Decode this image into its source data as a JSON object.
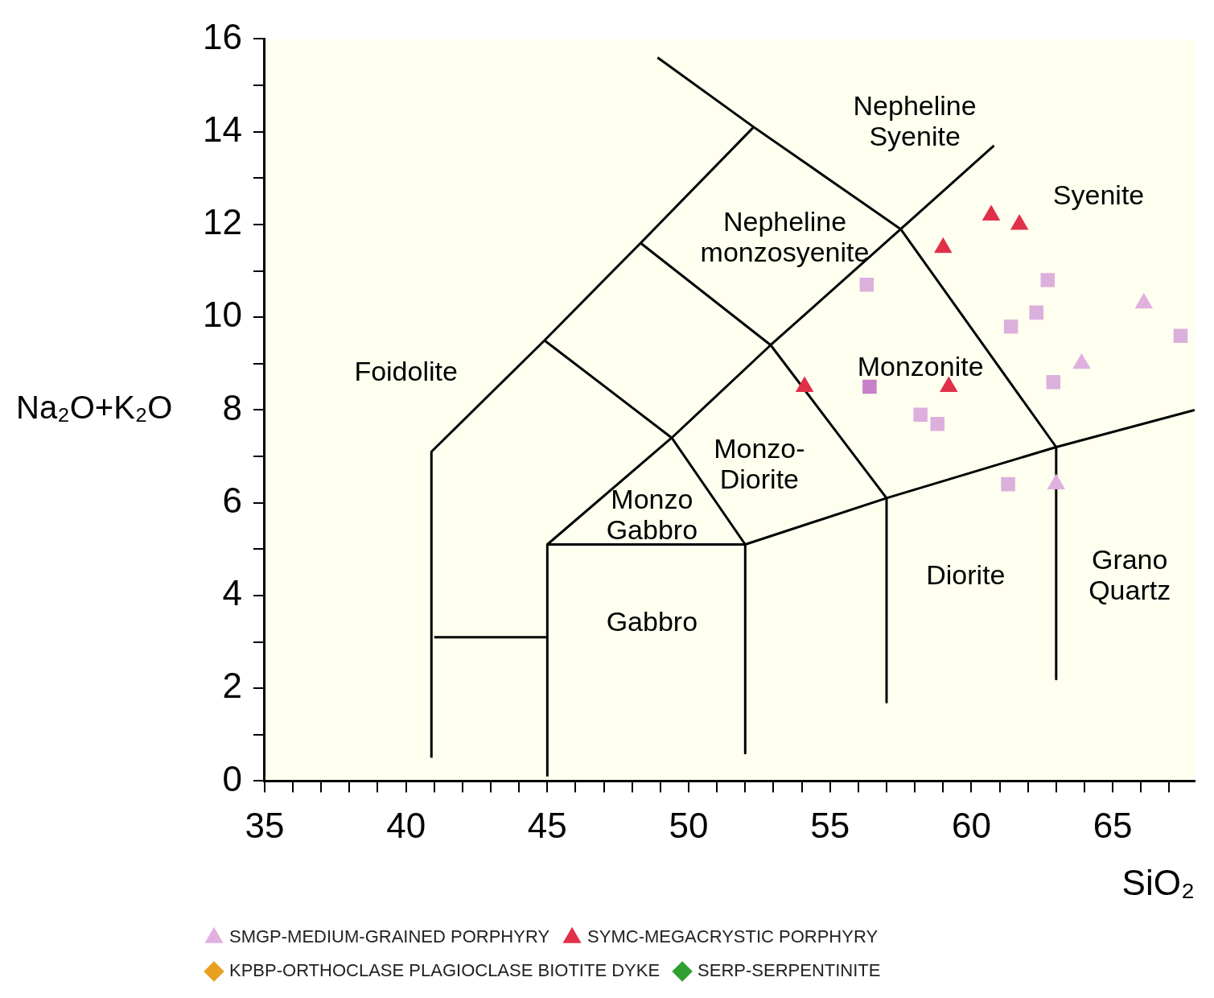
{
  "chart_data": {
    "type": "scatter",
    "xlabel": "SiO₂",
    "ylabel": "Na₂O+K₂O",
    "xlim": [
      35,
      67.9
    ],
    "ylim": [
      0,
      16
    ],
    "xticks": [
      35,
      {
        "value": 36,
        "label": null
      },
      {
        "value": 37,
        "label": null
      },
      {
        "value": 38,
        "label": null
      },
      {
        "value": 39,
        "label": null
      },
      40,
      {
        "value": 41,
        "label": null
      },
      {
        "value": 42,
        "label": null
      },
      {
        "value": 43,
        "label": null
      },
      {
        "value": 44,
        "label": null
      },
      45,
      {
        "value": 46,
        "label": null
      },
      {
        "value": 47,
        "label": null
      },
      {
        "value": 48,
        "label": null
      },
      {
        "value": 49,
        "label": null
      },
      50,
      {
        "value": 51,
        "label": null
      },
      {
        "value": 52,
        "label": null
      },
      {
        "value": 53,
        "label": null
      },
      {
        "value": 54,
        "label": null
      },
      55,
      {
        "value": 56,
        "label": null
      },
      {
        "value": 57,
        "label": null
      },
      {
        "value": 58,
        "label": null
      },
      {
        "value": 59,
        "label": null
      },
      60,
      {
        "value": 61,
        "label": null
      },
      {
        "value": 62,
        "label": null
      },
      {
        "value": 63,
        "label": null
      },
      {
        "value": 64,
        "label": null
      },
      65,
      {
        "value": 66,
        "label": null
      },
      {
        "value": 67,
        "label": null
      }
    ],
    "yticks": [
      0,
      {
        "value": 1,
        "label": null
      },
      2,
      {
        "value": 3,
        "label": null
      },
      4,
      {
        "value": 5,
        "label": null
      },
      6,
      {
        "value": 7,
        "label": null
      },
      8,
      {
        "value": 9,
        "label": null
      },
      10,
      {
        "value": 11,
        "label": null
      },
      12,
      {
        "value": 13,
        "label": null
      },
      14,
      {
        "value": 15,
        "label": null
      },
      16
    ],
    "legend": "bottom left",
    "series": [
      {
        "name": "SMGP-MEDIUM-GRAINED PORPHYRY",
        "marker": "triangle",
        "color": "#e0b0e0",
        "x": [
          66.1,
          63.9,
          63.0
        ],
        "values": [
          10.3,
          9.0,
          6.4
        ]
      },
      {
        "name": "SYMC-MEGACRYSTIC PORPHYRY",
        "marker": "triangle",
        "color": "#e0304a",
        "x": [
          60.7,
          61.7,
          59.0,
          54.1,
          59.2
        ],
        "values": [
          12.2,
          12.0,
          11.5,
          8.5,
          8.5
        ]
      },
      {
        "name": "KPBP-ORTHOCLASE PLAGIOCLASE BIOTITE DYKE",
        "marker": "diamond",
        "color": "#e8a020"
      },
      {
        "name": "SERP-SERPENTINITE",
        "marker": "diamond",
        "color": "#30a030"
      },
      {
        "marker": "square",
        "color": "#dcb0dc",
        "x": [
          56.3,
          62.7,
          62.3,
          61.4,
          67.4,
          62.9,
          58.2,
          58.8,
          61.3
        ],
        "values": [
          10.7,
          10.8,
          10.1,
          9.8,
          9.6,
          8.6,
          7.9,
          7.7,
          6.4
        ]
      },
      {
        "marker": "square",
        "color": "#c880c8",
        "x": [
          56.4
        ],
        "values": [
          8.5
        ]
      },
      {
        "type": "line",
        "marker": "none",
        "color": "#000000",
        "x": [
          40.9,
          40.9,
          44.9,
          48.3,
          52.3
        ],
        "values": [
          0.5,
          7.1,
          9.5,
          11.6,
          14.1
        ]
      },
      {
        "type": "line",
        "marker": "none",
        "color": "#000000",
        "x": [
          48.9,
          52.3,
          57.5,
          63.0,
          63.0
        ],
        "values": [
          15.6,
          14.1,
          11.9,
          7.2,
          2.2
        ]
      },
      {
        "type": "line",
        "marker": "none",
        "color": "#000000",
        "x": [
          45.0,
          49.4,
          52.9,
          57.5,
          60.8
        ],
        "values": [
          5.1,
          7.4,
          9.4,
          11.9,
          13.7
        ]
      },
      {
        "type": "line",
        "marker": "none",
        "color": "#000000",
        "x": [
          48.3,
          52.9,
          57.0,
          57.0
        ],
        "values": [
          11.6,
          9.4,
          6.1,
          1.7
        ]
      },
      {
        "type": "line",
        "marker": "none",
        "color": "#000000",
        "x": [
          44.9,
          49.4,
          52.0,
          52.0
        ],
        "values": [
          9.5,
          7.4,
          5.1,
          0.6
        ]
      },
      {
        "type": "line",
        "marker": "none",
        "color": "#000000",
        "x": [
          45.0,
          45.0,
          52.0,
          57.0,
          63.0,
          67.9
        ],
        "values": [
          0.1,
          5.1,
          5.1,
          6.1,
          7.2,
          8.0
        ]
      },
      {
        "type": "line",
        "marker": "none",
        "color": "#000000",
        "x": [
          41.0,
          45.0
        ],
        "values": [
          3.1,
          3.1
        ]
      }
    ],
    "annotations": [
      "Foidolite",
      "Nepheline\nSyenite",
      "Syenite",
      "Nepheline\nmonzosyenite",
      "Monzonite",
      "Monzo-\nDiorite",
      "Monzo\nGabbro",
      "Diorite",
      "Gabbro",
      "Grano\nQuartz"
    ]
  }
}
